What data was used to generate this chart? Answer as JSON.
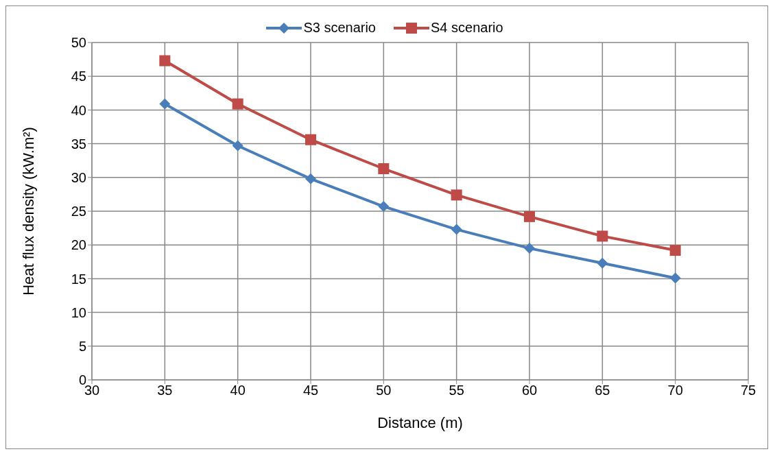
{
  "chart_data": {
    "type": "line",
    "xlabel": "Distance (m)",
    "ylabel": "Heat flux density  (kW.m²)",
    "x": [
      35,
      40,
      45,
      50,
      55,
      60,
      65,
      70
    ],
    "series": [
      {
        "name": "S3 scenario",
        "color": "#4a7ebb",
        "marker": "diamond",
        "values": [
          40.9,
          34.7,
          29.8,
          25.7,
          22.3,
          19.5,
          17.3,
          15.1
        ]
      },
      {
        "name": "S4 scenario",
        "color": "#be4b48",
        "marker": "square",
        "values": [
          47.3,
          40.9,
          35.6,
          31.3,
          27.4,
          24.2,
          21.3,
          19.2
        ]
      }
    ],
    "xlim": [
      30,
      75
    ],
    "xticks": [
      30,
      35,
      40,
      45,
      50,
      55,
      60,
      65,
      70,
      75
    ],
    "ylim": [
      0,
      50
    ],
    "yticks": [
      0,
      5,
      10,
      15,
      20,
      25,
      30,
      35,
      40,
      45,
      50
    ],
    "grid": true,
    "legend": "top",
    "line_style": "solid"
  }
}
